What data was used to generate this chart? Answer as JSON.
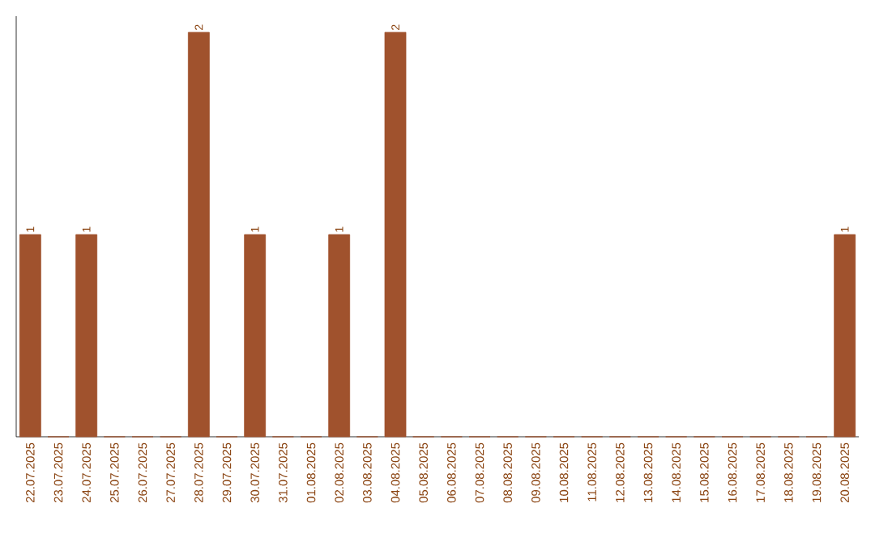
{
  "chart_data": {
    "type": "bar",
    "color": "#a0522d",
    "categories": [
      "22.07.2025",
      "23.07.2025",
      "24.07.2025",
      "25.07.2025",
      "26.07.2025",
      "27.07.2025",
      "28.07.2025",
      "29.07.2025",
      "30.07.2025",
      "31.07.2025",
      "01.08.2025",
      "02.08.2025",
      "03.08.2025",
      "04.08.2025",
      "05.08.2025",
      "06.08.2025",
      "07.08.2025",
      "08.08.2025",
      "09.08.2025",
      "10.08.2025",
      "11.08.2025",
      "12.08.2025",
      "13.08.2025",
      "14.08.2025",
      "15.08.2025",
      "16.08.2025",
      "17.08.2025",
      "18.08.2025",
      "19.08.2025",
      "20.08.2025"
    ],
    "values": [
      1,
      0,
      1,
      0,
      0,
      0,
      2,
      0,
      1,
      0,
      0,
      1,
      0,
      2,
      0,
      0,
      0,
      0,
      0,
      0,
      0,
      0,
      0,
      0,
      0,
      0,
      0,
      0,
      0,
      1
    ],
    "value_labels": [
      "1",
      null,
      "1",
      null,
      null,
      null,
      "2",
      null,
      "1",
      null,
      null,
      "1",
      null,
      "2",
      null,
      null,
      null,
      null,
      null,
      null,
      null,
      null,
      null,
      null,
      null,
      null,
      null,
      null,
      null,
      "1"
    ],
    "tick_labels": "x"
  }
}
